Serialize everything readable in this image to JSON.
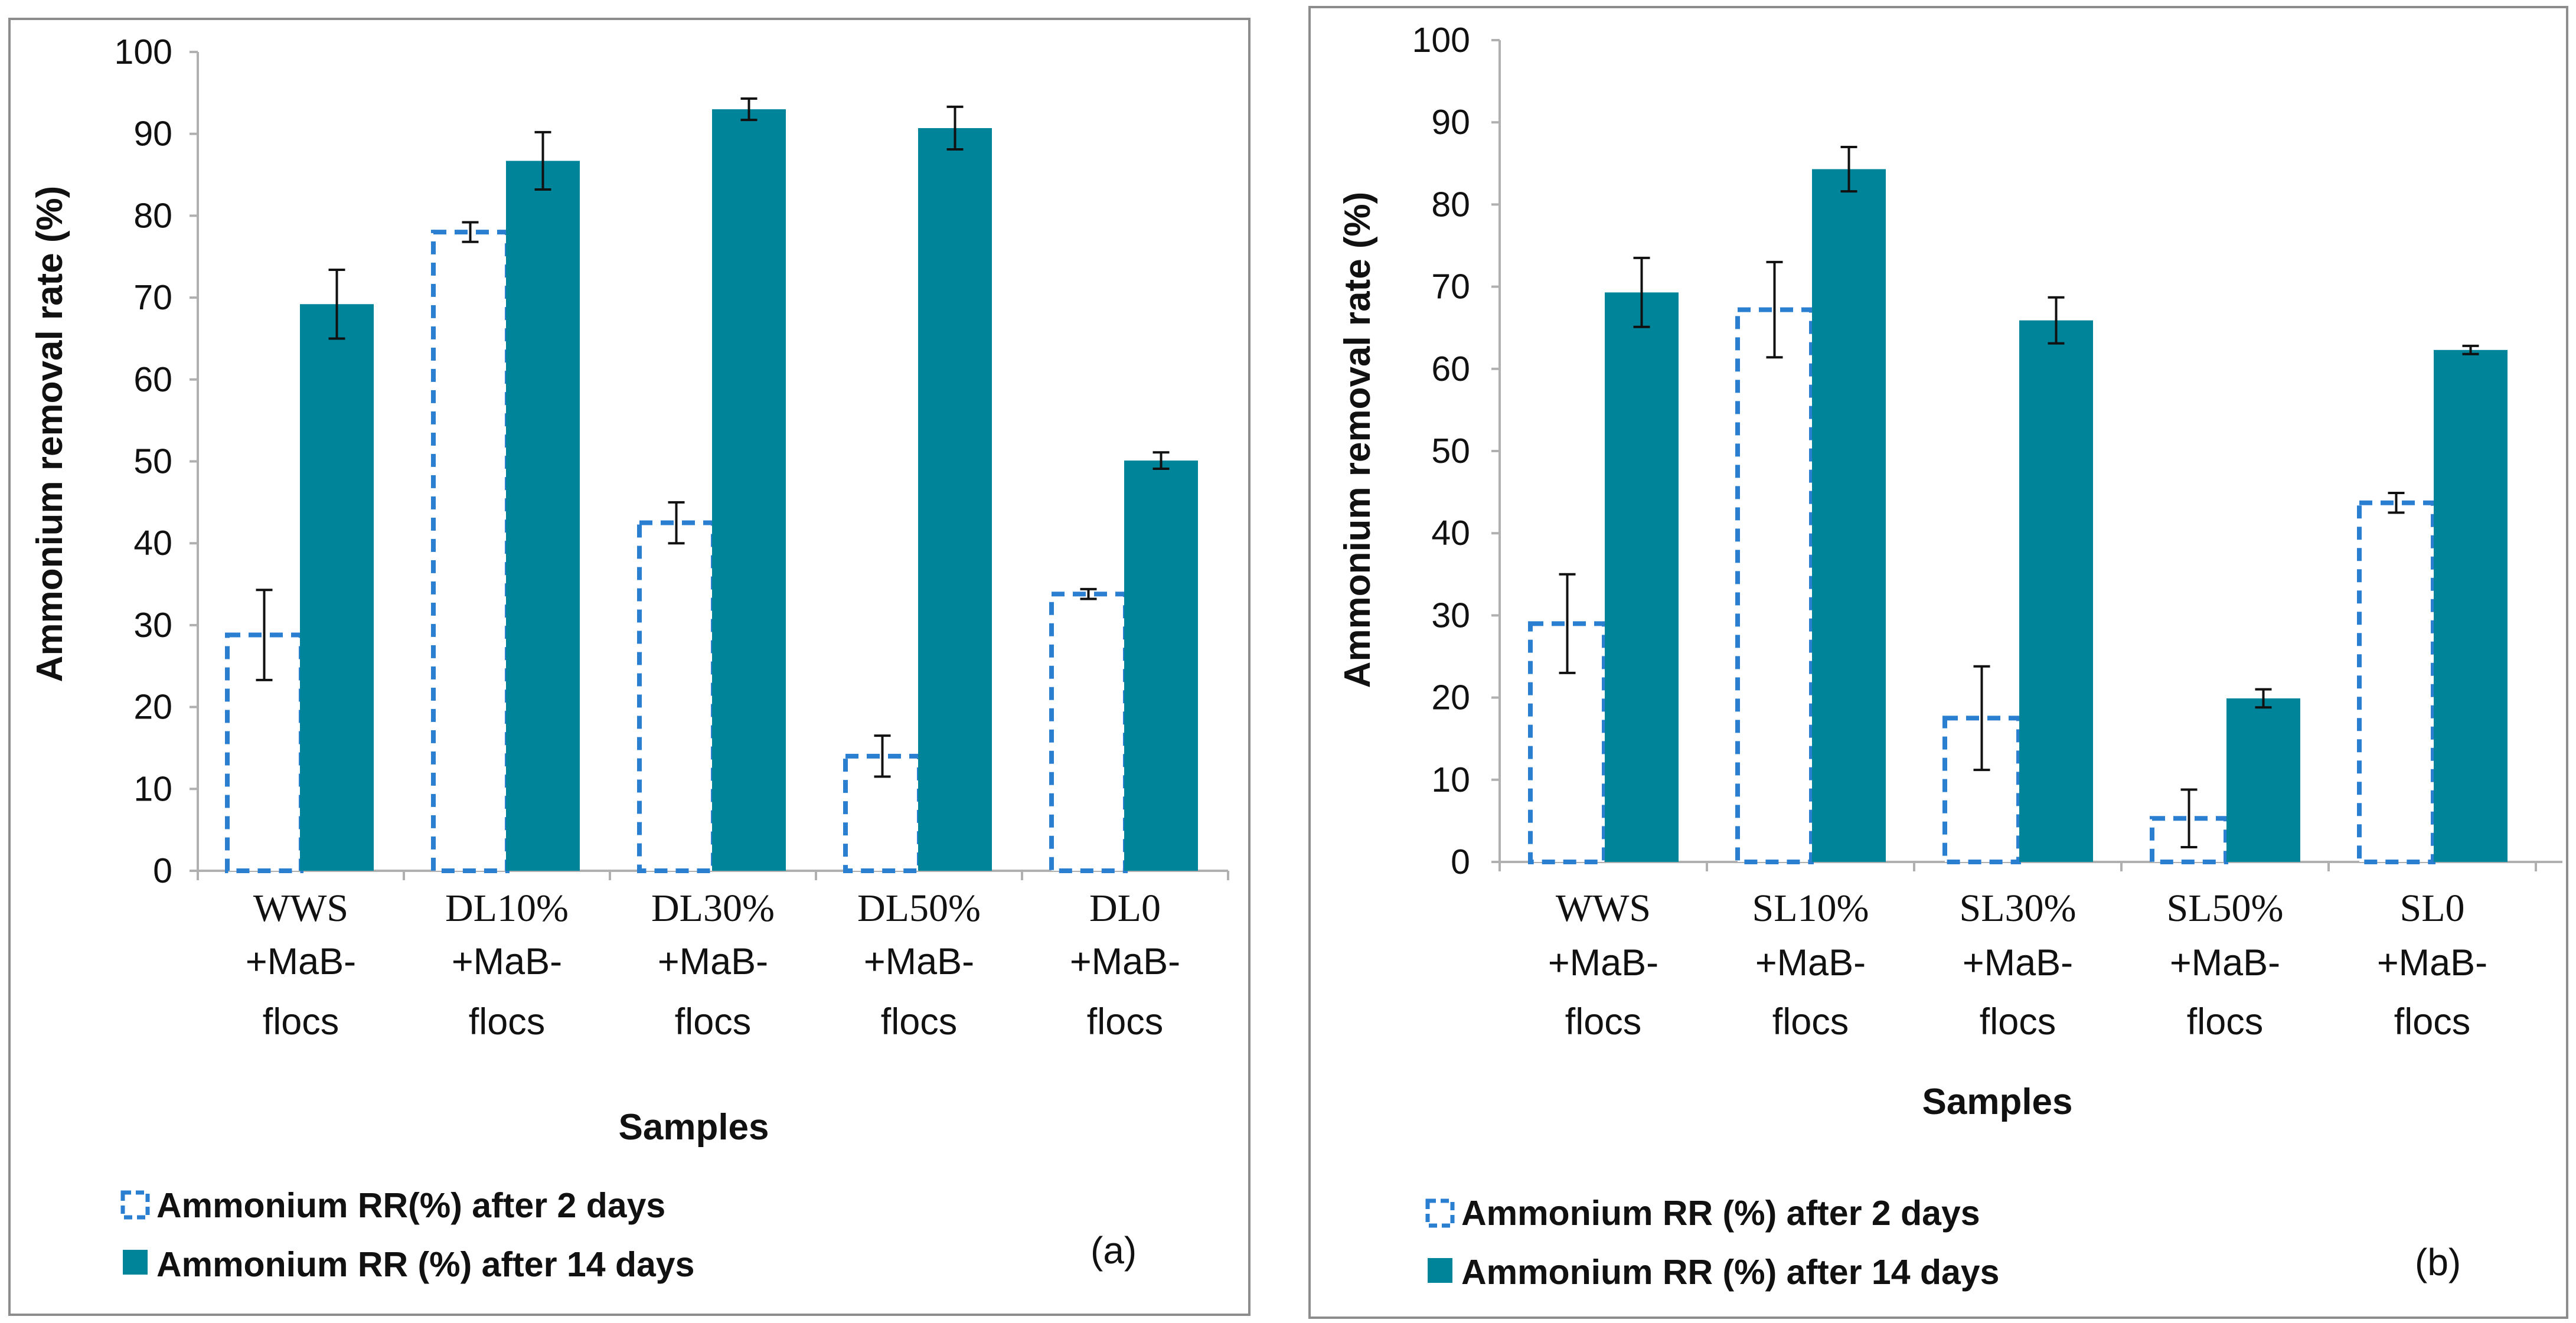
{
  "colors": {
    "solid": "#00849a",
    "dashed": "#2b7fd0",
    "frame": "#8c8c8c",
    "axis": "#b0b0b0"
  },
  "legend": {
    "a": {
      "day2": "Ammonium RR(%) after 2 days",
      "day14": "Ammonium RR (%) after 14 days"
    },
    "b": {
      "day2": "Ammonium RR (%) after 2 days",
      "day14": "Ammonium RR (%) after 14 days"
    }
  },
  "chart_data": [
    {
      "type": "bar",
      "panel_label": "(a)",
      "xlabel": "Samples",
      "ylabel": "Ammonium removal rate (%)",
      "ylim": [
        0,
        100
      ],
      "yticks": [
        0,
        10,
        20,
        30,
        40,
        50,
        60,
        70,
        80,
        90,
        100
      ],
      "categories": [
        {
          "line1": "WWS",
          "line2": "+MaB-",
          "line3": "flocs"
        },
        {
          "line1": "DL10%",
          "line2": "+MaB-",
          "line3": "flocs"
        },
        {
          "line1": "DL30%",
          "line2": "+MaB-",
          "line3": "flocs"
        },
        {
          "line1": "DL50%",
          "line2": "+MaB-",
          "line3": "flocs"
        },
        {
          "line1": "DL0",
          "line2": "+MaB-",
          "line3": "flocs"
        }
      ],
      "series": [
        {
          "name": "Ammonium RR(%) after 2 days",
          "style": "dashed",
          "values": [
            28.8,
            78,
            42.5,
            14,
            33.8
          ],
          "errors": [
            5.5,
            1.2,
            2.5,
            2.5,
            0.6
          ]
        },
        {
          "name": "Ammonium RR (%) after 14 days",
          "style": "solid",
          "values": [
            69.2,
            86.7,
            93,
            90.7,
            50.1
          ],
          "errors": [
            4.2,
            3.5,
            1.3,
            2.6,
            1.0
          ]
        }
      ]
    },
    {
      "type": "bar",
      "panel_label": "(b)",
      "xlabel": "Samples",
      "ylabel": "Ammonium removal rate (%)",
      "ylim": [
        0,
        100
      ],
      "yticks": [
        0,
        10,
        20,
        30,
        40,
        50,
        60,
        70,
        80,
        90,
        100
      ],
      "categories": [
        {
          "line1": "WWS",
          "line2": "+MaB-",
          "line3": "flocs"
        },
        {
          "line1": "SL10%",
          "line2": "+MaB-",
          "line3": "flocs"
        },
        {
          "line1": "SL30%",
          "line2": "+MaB-",
          "line3": "flocs"
        },
        {
          "line1": "SL50%",
          "line2": "+MaB-",
          "line3": "flocs"
        },
        {
          "line1": "SL0",
          "line2": "+MaB-",
          "line3": "flocs"
        }
      ],
      "series": [
        {
          "name": "Ammonium RR (%) after 2 days",
          "style": "dashed",
          "values": [
            29,
            67.2,
            17.5,
            5.3,
            43.7
          ],
          "errors": [
            6,
            5.8,
            6.3,
            3.5,
            1.2
          ]
        },
        {
          "name": "Ammonium RR (%) after 14 days",
          "style": "solid",
          "values": [
            69.3,
            84.3,
            65.9,
            19.9,
            62.3
          ],
          "errors": [
            4.2,
            2.7,
            2.8,
            1.1,
            0.5
          ]
        }
      ]
    }
  ]
}
